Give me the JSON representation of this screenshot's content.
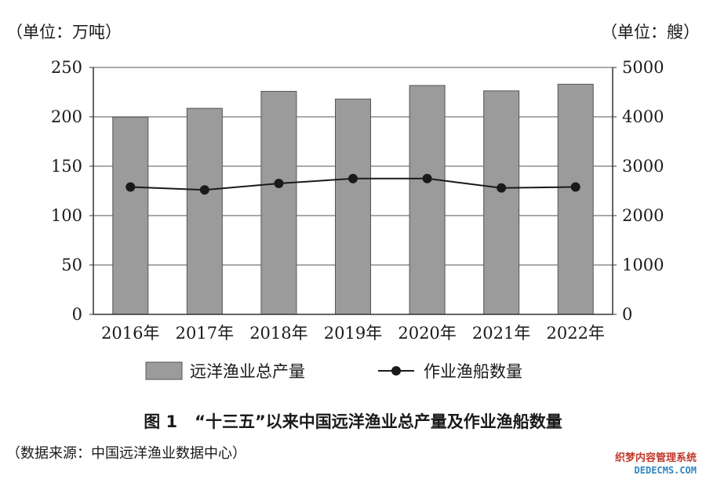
{
  "chart_data": {
    "type": "bar+line",
    "categories": [
      "2016年",
      "2017年",
      "2018年",
      "2019年",
      "2020年",
      "2021年",
      "2022年"
    ],
    "series": [
      {
        "name": "远洋渔业总产量",
        "type": "bar",
        "axis": "left",
        "values": [
          199.7,
          208.6,
          225.8,
          218.0,
          231.7,
          226.3,
          233.0
        ],
        "color": "#9b9b9b"
      },
      {
        "name": "作业渔船数量",
        "type": "line",
        "axis": "right",
        "values": [
          2580,
          2520,
          2650,
          2750,
          2750,
          2560,
          2580
        ],
        "color": "#1a1a1a"
      }
    ],
    "left_axis": {
      "unit_label": "（单位：万吨）",
      "ylim": [
        0,
        250
      ],
      "ticks": [
        "0",
        "50",
        "100",
        "150",
        "200",
        "250"
      ]
    },
    "right_axis": {
      "unit_label": "（单位：艘）",
      "ylim": [
        0,
        5000
      ],
      "ticks": [
        "0",
        "1000",
        "2000",
        "3000",
        "4000",
        "5000"
      ]
    },
    "grid": true,
    "legend_placement": "bottom"
  },
  "caption": {
    "figure_no": "图 1",
    "title": "“十三五”以来中国远洋渔业总产量及作业渔船数量"
  },
  "source_note": "（数据来源：中国远洋渔业数据中心）",
  "watermark": {
    "line1": "织梦内容管理系统",
    "line2": "DEDECMS.COM"
  }
}
